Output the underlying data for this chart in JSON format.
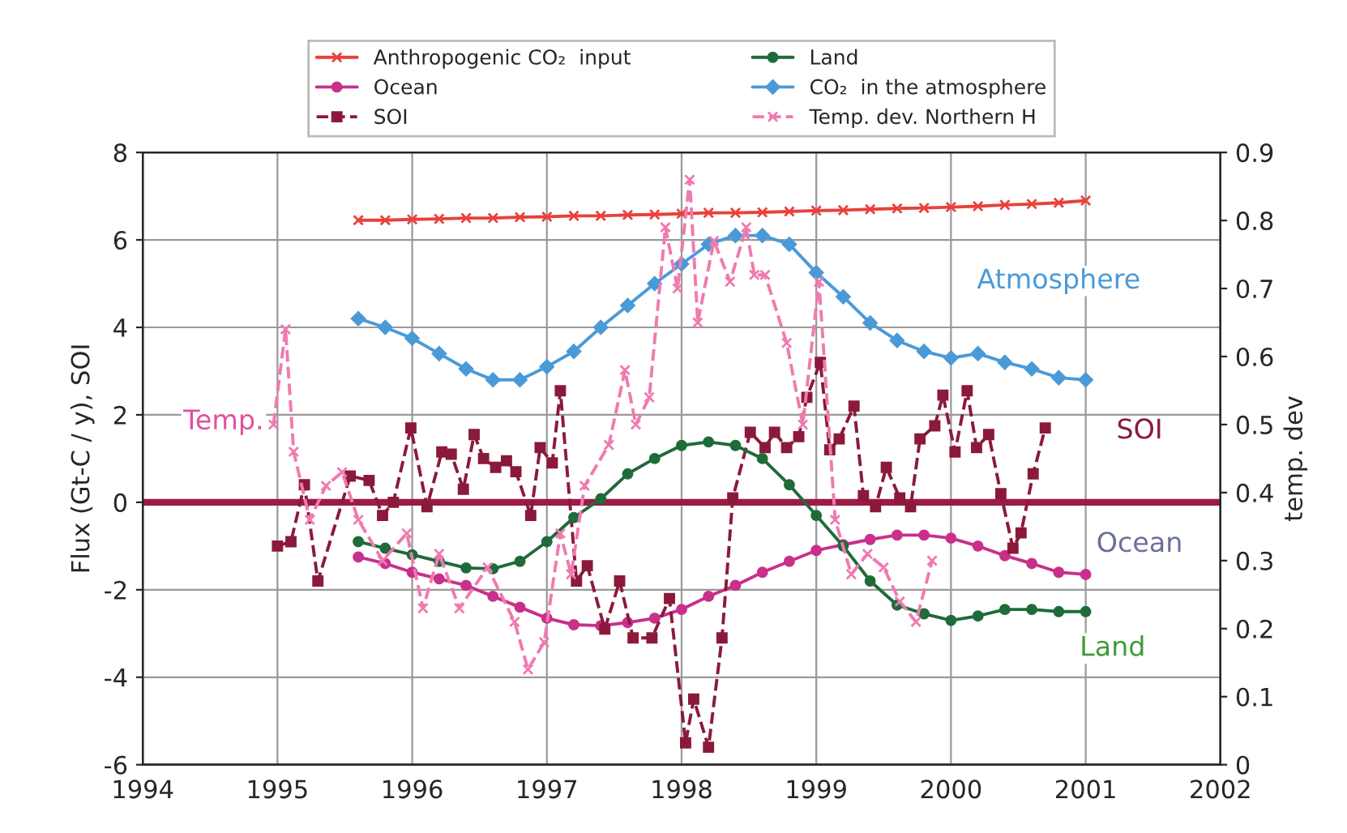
{
  "chart_data": {
    "type": "line",
    "ylabel": "Flux (Gt-C / y), SOI",
    "y2label": "temp. dev",
    "xlim": [
      1994,
      2002
    ],
    "xticks": [
      1994,
      1995,
      1996,
      1997,
      1998,
      1999,
      2000,
      2001,
      2002
    ],
    "ylim": [
      -6,
      8
    ],
    "yticks": [
      -6,
      -4,
      -2,
      0,
      2,
      4,
      6,
      8
    ],
    "y2lim": [
      0,
      0.9
    ],
    "y2ticks": [
      0,
      0.1,
      0.2,
      0.3,
      0.4,
      0.5,
      0.6,
      0.7,
      0.8,
      0.9
    ],
    "grid": true,
    "legend": "top",
    "ref_lines": [
      {
        "axis": "y",
        "value": 0,
        "color": "#9b1b45"
      }
    ],
    "annotations": [
      "Atmosphere",
      "SOI",
      "Ocean",
      "Land",
      "Temp."
    ],
    "series": [
      {
        "name": "Anthropogenic CO₂  input",
        "color": "#e8413c",
        "marker": "cross",
        "line_style": "solid",
        "x": [
          1995.6,
          1995.8,
          1996.0,
          1996.2,
          1996.4,
          1996.6,
          1996.8,
          1997.0,
          1997.2,
          1997.4,
          1997.6,
          1997.8,
          1998.0,
          1998.2,
          1998.4,
          1998.6,
          1998.8,
          1999.0,
          1999.2,
          1999.4,
          1999.6,
          1999.8,
          2000.0,
          2000.2,
          2000.4,
          2000.6,
          2000.8,
          2001.0
        ],
        "values": [
          6.45,
          6.45,
          6.47,
          6.48,
          6.5,
          6.5,
          6.52,
          6.53,
          6.55,
          6.55,
          6.57,
          6.58,
          6.6,
          6.62,
          6.62,
          6.63,
          6.65,
          6.67,
          6.68,
          6.7,
          6.72,
          6.73,
          6.75,
          6.77,
          6.8,
          6.82,
          6.85,
          6.9
        ]
      },
      {
        "name": "Ocean",
        "color": "#c8308a",
        "marker": "circle",
        "line_style": "solid",
        "x": [
          1995.6,
          1995.8,
          1996.0,
          1996.2,
          1996.4,
          1996.6,
          1996.8,
          1997.0,
          1997.2,
          1997.4,
          1997.6,
          1997.8,
          1998.0,
          1998.2,
          1998.4,
          1998.6,
          1998.8,
          1999.0,
          1999.2,
          1999.4,
          1999.6,
          1999.8,
          2000.0,
          2000.2,
          2000.4,
          2000.6,
          2000.8,
          2001.0
        ],
        "values": [
          -1.25,
          -1.4,
          -1.6,
          -1.75,
          -1.9,
          -2.15,
          -2.4,
          -2.65,
          -2.8,
          -2.82,
          -2.75,
          -2.65,
          -2.45,
          -2.15,
          -1.9,
          -1.6,
          -1.35,
          -1.1,
          -0.97,
          -0.85,
          -0.75,
          -0.75,
          -0.82,
          -1.0,
          -1.22,
          -1.4,
          -1.6,
          -1.65
        ]
      },
      {
        "name": "SOI",
        "color": "#8b1a3a",
        "marker": "square",
        "line_style": "dashed",
        "x": [
          1995.0,
          1995.1,
          1995.2,
          1995.3,
          1995.54,
          1995.68,
          1995.78,
          1995.86,
          1995.99,
          1996.11,
          1996.22,
          1996.29,
          1996.38,
          1996.46,
          1996.53,
          1996.62,
          1996.7,
          1996.77,
          1996.88,
          1996.95,
          1997.04,
          1997.1,
          1997.22,
          1997.3,
          1997.43,
          1997.54,
          1997.64,
          1997.78,
          1997.91,
          1998.03,
          1998.09,
          1998.2,
          1998.3,
          1998.38,
          1998.51,
          1998.62,
          1998.69,
          1998.78,
          1998.87,
          1998.93,
          1999.03,
          1999.1,
          1999.17,
          1999.28,
          1999.35,
          1999.44,
          1999.52,
          1999.62,
          1999.7,
          1999.77,
          1999.88,
          1999.94,
          2000.03,
          2000.12,
          2000.19,
          2000.28,
          2000.37,
          2000.46,
          2000.52,
          2000.61,
          2000.7
        ],
        "values": [
          -1.0,
          -0.9,
          0.4,
          -1.8,
          0.6,
          0.5,
          -0.3,
          0.0,
          1.7,
          -0.1,
          1.15,
          1.1,
          0.3,
          1.55,
          1.0,
          0.8,
          0.95,
          0.7,
          -0.3,
          1.25,
          0.9,
          2.55,
          -1.8,
          -1.45,
          -2.9,
          -1.8,
          -3.1,
          -3.1,
          -2.2,
          -5.5,
          -4.5,
          -5.6,
          -3.1,
          0.1,
          1.6,
          1.25,
          1.6,
          1.25,
          1.5,
          2.4,
          3.2,
          1.2,
          1.45,
          2.2,
          0.15,
          -0.1,
          0.8,
          0.1,
          -0.1,
          1.45,
          1.75,
          2.45,
          1.15,
          2.55,
          1.25,
          1.55,
          0.2,
          -1.05,
          -0.7,
          0.65,
          1.7
        ]
      },
      {
        "name": "Land",
        "color": "#1f6b3a",
        "marker": "circle",
        "line_style": "solid",
        "x": [
          1995.6,
          1995.8,
          1996.0,
          1996.2,
          1996.4,
          1996.6,
          1996.8,
          1997.0,
          1997.2,
          1997.4,
          1997.6,
          1997.8,
          1998.0,
          1998.2,
          1998.4,
          1998.6,
          1998.8,
          1999.0,
          1999.2,
          1999.4,
          1999.6,
          1999.8,
          2000.0,
          2000.2,
          2000.4,
          2000.6,
          2000.8,
          2001.0
        ],
        "values": [
          -0.9,
          -1.05,
          -1.2,
          -1.35,
          -1.5,
          -1.52,
          -1.35,
          -0.9,
          -0.35,
          0.08,
          0.65,
          1.0,
          1.3,
          1.38,
          1.3,
          1.0,
          0.4,
          -0.3,
          -1.0,
          -1.8,
          -2.35,
          -2.55,
          -2.7,
          -2.6,
          -2.45,
          -2.45,
          -2.5,
          -2.5
        ]
      },
      {
        "name": "CO₂  in the atmosphere",
        "color": "#4a9ad8",
        "marker": "diamond",
        "line_style": "solid",
        "x": [
          1995.6,
          1995.8,
          1996.0,
          1996.2,
          1996.4,
          1996.6,
          1996.8,
          1997.0,
          1997.2,
          1997.4,
          1997.6,
          1997.8,
          1998.0,
          1998.2,
          1998.4,
          1998.6,
          1998.8,
          1999.0,
          1999.2,
          1999.4,
          1999.6,
          1999.8,
          2000.0,
          2000.2,
          2000.4,
          2000.6,
          2000.8,
          2001.0
        ],
        "values": [
          4.2,
          4.0,
          3.75,
          3.4,
          3.05,
          2.8,
          2.8,
          3.1,
          3.45,
          4.0,
          4.5,
          5.0,
          5.45,
          5.9,
          6.1,
          6.1,
          5.9,
          5.25,
          4.7,
          4.1,
          3.7,
          3.45,
          3.3,
          3.4,
          3.2,
          3.05,
          2.85,
          2.8
        ]
      },
      {
        "name": "Temp. dev. Northern H",
        "color": "#f07ab0",
        "marker": "cross",
        "line_style": "dashed",
        "axis": "y2",
        "x": [
          1994.97,
          1995.06,
          1995.12,
          1995.24,
          1995.36,
          1995.48,
          1995.6,
          1995.78,
          1995.96,
          1996.08,
          1996.2,
          1996.35,
          1996.56,
          1996.76,
          1996.86,
          1996.98,
          1997.1,
          1997.18,
          1997.28,
          1997.46,
          1997.58,
          1997.66,
          1997.76,
          1997.88,
          1997.97,
          1998.06,
          1998.12,
          1998.24,
          1998.36,
          1998.48,
          1998.54,
          1998.62,
          1998.78,
          1998.9,
          1999.02,
          1999.14,
          1999.26,
          1999.38,
          1999.5,
          1999.62,
          1999.74,
          1999.86
        ],
        "values": [
          0.5,
          0.64,
          0.46,
          0.36,
          0.41,
          0.43,
          0.36,
          0.3,
          0.34,
          0.23,
          0.31,
          0.23,
          0.29,
          0.21,
          0.14,
          0.18,
          0.34,
          0.28,
          0.41,
          0.47,
          0.58,
          0.5,
          0.54,
          0.79,
          0.7,
          0.86,
          0.65,
          0.77,
          0.71,
          0.79,
          0.72,
          0.72,
          0.62,
          0.5,
          0.71,
          0.36,
          0.28,
          0.31,
          0.29,
          0.24,
          0.21,
          0.3
        ]
      }
    ]
  }
}
